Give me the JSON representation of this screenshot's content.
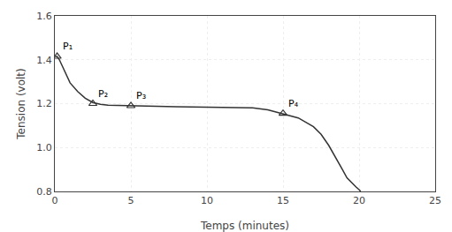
{
  "chart_data": {
    "type": "line",
    "xlabel": "Temps (minutes)",
    "ylabel": "Tension (volt)",
    "xlim": [
      0,
      25
    ],
    "ylim": [
      0.8,
      1.6
    ],
    "xticks": [
      0,
      5,
      10,
      15,
      20,
      25
    ],
    "yticks": [
      0.8,
      {
        "value": 1,
        "label": "1.0"
      },
      1.2,
      1.4,
      1.6
    ],
    "grid": true,
    "series": [
      {
        "x": [
          0.0,
          0.15,
          0.3,
          0.5,
          0.8,
          1.0,
          1.5,
          2.0,
          2.5,
          3.0,
          3.5,
          4.0,
          4.5,
          5.0,
          6.0,
          7.0,
          8.0,
          9.0,
          10.0,
          11.0,
          12.0,
          13.0,
          14.0,
          15.0,
          16.0,
          17.0,
          17.5,
          18.0,
          18.3,
          18.6,
          18.9,
          19.2,
          19.5,
          19.8,
          20.0,
          20.1
        ],
        "values": [
          1.415,
          1.415,
          1.4,
          1.37,
          1.32,
          1.295,
          1.255,
          1.225,
          1.205,
          1.197,
          1.193,
          1.192,
          1.191,
          1.19,
          1.188,
          1.187,
          1.186,
          1.185,
          1.184,
          1.183,
          1.182,
          1.181,
          1.172,
          1.155,
          1.135,
          1.095,
          1.06,
          1.01,
          0.975,
          0.94,
          0.9,
          0.862,
          0.84,
          0.82,
          0.808,
          0.8
        ],
        "color": "#333333",
        "line_style": "solid"
      },
      {
        "x": [
          0.15,
          2.5,
          5.0,
          15.0
        ],
        "values": [
          1.415,
          1.2,
          1.19,
          1.155
        ],
        "color": "#333333",
        "marker": "triangle",
        "line_style": "none"
      }
    ],
    "annotations": [
      {
        "x": 0.15,
        "y": 1.415,
        "text": "P₁"
      },
      {
        "x": 2.5,
        "y": 1.2,
        "text": "P₂"
      },
      {
        "x": 5.0,
        "y": 1.19,
        "text": "P₃"
      },
      {
        "x": 15.0,
        "y": 1.155,
        "text": "P₄"
      }
    ]
  }
}
